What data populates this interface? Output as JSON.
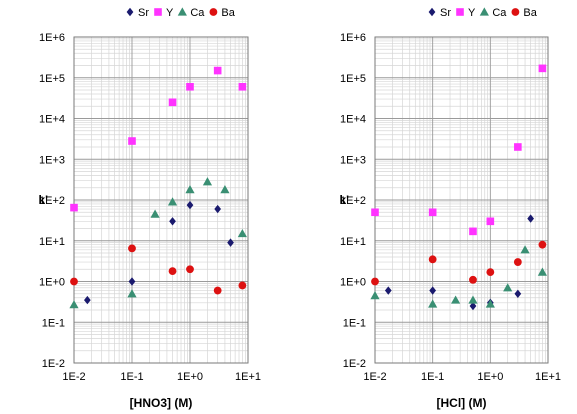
{
  "chart_data": [
    {
      "type": "scatter",
      "title": "",
      "xlabel": "[HNO3] (M)",
      "ylabel": "k'",
      "xscale": "log",
      "yscale": "log",
      "xlim": [
        0.01,
        10
      ],
      "ylim": [
        0.01,
        1000000
      ],
      "xticks": [
        "1E-2",
        "1E-1",
        "1E+0",
        "1E+1"
      ],
      "yticks": [
        "1E-2",
        "1E-1",
        "1E+0",
        "1E+1",
        "1E+2",
        "1E+3",
        "1E+4",
        "1E+5",
        "1E+6"
      ],
      "grid": true,
      "legend_position": "top",
      "series": [
        {
          "name": "Sr",
          "marker": "diamond",
          "color": "#1a1a6e",
          "x": [
            0.017,
            0.1,
            0.5,
            1.0,
            3.0,
            5.0
          ],
          "y": [
            0.35,
            1.0,
            30,
            75,
            60,
            9
          ]
        },
        {
          "name": "Y",
          "marker": "square",
          "color": "#ff33ff",
          "x": [
            0.01,
            0.1,
            0.5,
            1.0,
            3.0,
            8.0
          ],
          "y": [
            65,
            2800,
            25000,
            60000,
            150000,
            60000
          ]
        },
        {
          "name": "Ca",
          "marker": "triangle",
          "color": "#3a8f73",
          "x": [
            0.01,
            0.1,
            0.25,
            0.5,
            1.0,
            2.0,
            4.0,
            8.0
          ],
          "y": [
            0.27,
            0.5,
            45,
            90,
            180,
            280,
            180,
            15
          ]
        },
        {
          "name": "Ba",
          "marker": "circle",
          "color": "#dd1111",
          "x": [
            0.01,
            0.1,
            0.5,
            1.0,
            3.0,
            8.0
          ],
          "y": [
            1.0,
            6.5,
            1.8,
            2.0,
            0.6,
            0.8
          ]
        }
      ]
    },
    {
      "type": "scatter",
      "title": "",
      "xlabel": "[HCl] (M)",
      "ylabel": "k'",
      "xscale": "log",
      "yscale": "log",
      "xlim": [
        0.01,
        10
      ],
      "ylim": [
        0.01,
        1000000
      ],
      "xticks": [
        "1E-2",
        "1E-1",
        "1E+0",
        "1E+1"
      ],
      "yticks": [
        "1E-2",
        "1E-1",
        "1E+0",
        "1E+1",
        "1E+2",
        "1E+3",
        "1E+4",
        "1E+5",
        "1E+6"
      ],
      "grid": true,
      "legend_position": "top",
      "series": [
        {
          "name": "Sr",
          "marker": "diamond",
          "color": "#1a1a6e",
          "x": [
            0.017,
            0.1,
            0.5,
            1.0,
            3.0,
            5.0
          ],
          "y": [
            0.6,
            0.6,
            0.25,
            0.3,
            0.5,
            35
          ]
        },
        {
          "name": "Y",
          "marker": "square",
          "color": "#ff33ff",
          "x": [
            0.01,
            0.1,
            0.5,
            1.0,
            3.0,
            8.0
          ],
          "y": [
            50,
            50,
            17,
            30,
            2000,
            170000
          ]
        },
        {
          "name": "Ca",
          "marker": "triangle",
          "color": "#3a8f73",
          "x": [
            0.01,
            0.1,
            0.25,
            0.5,
            1.0,
            2.0,
            4.0,
            8.0
          ],
          "y": [
            0.45,
            0.28,
            0.35,
            0.35,
            0.28,
            0.7,
            6,
            1.7
          ]
        },
        {
          "name": "Ba",
          "marker": "circle",
          "color": "#dd1111",
          "x": [
            0.01,
            0.1,
            0.5,
            1.0,
            3.0,
            8.0
          ],
          "y": [
            1.0,
            3.5,
            1.1,
            1.7,
            3.0,
            8.0
          ]
        }
      ]
    }
  ]
}
